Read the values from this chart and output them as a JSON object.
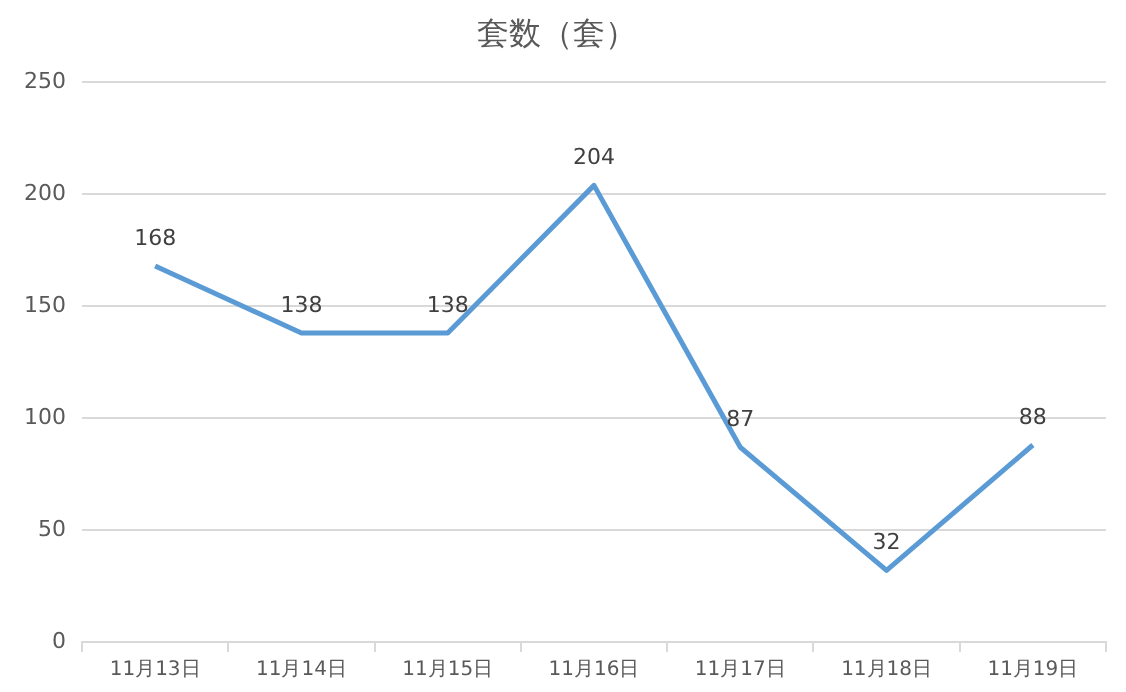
{
  "chart_data": {
    "type": "line",
    "title": "套数（套）",
    "categories": [
      "11月13日",
      "11月14日",
      "11月15日",
      "11月16日",
      "11月17日",
      "11月18日",
      "11月19日"
    ],
    "series": [
      {
        "color": "#5b9bd5",
        "values": [
          168,
          138,
          138,
          204,
          87,
          32,
          88
        ]
      }
    ],
    "ylim": [
      0,
      250
    ],
    "yticks": [
      0,
      50,
      100,
      150,
      200,
      250
    ],
    "grid": "y",
    "legend": false,
    "marker": "none",
    "line_style": "solid",
    "data_labels": true
  }
}
